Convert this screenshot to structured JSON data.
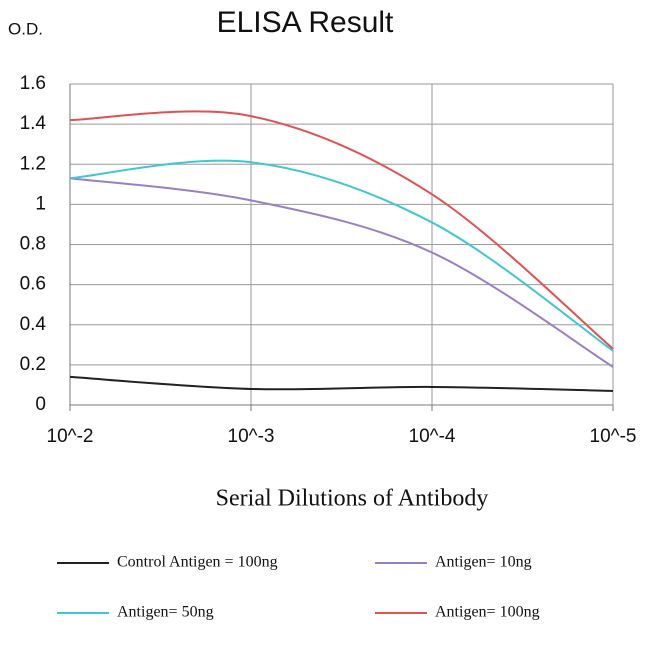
{
  "chart_data": {
    "type": "line",
    "title": "ELISA Result",
    "y_label": "O.D.",
    "x_label": "Serial Dilutions of Antibody",
    "categories": [
      "10^-2",
      "10^-3",
      "10^-4",
      "10^-5"
    ],
    "series": [
      {
        "name": "Control Antigen = 100ng",
        "color": "#222222",
        "values": [
          0.14,
          0.08,
          0.09,
          0.07
        ]
      },
      {
        "name": "Antigen= 10ng",
        "color": "#9b7fc4",
        "values": [
          1.13,
          1.02,
          0.76,
          0.19
        ]
      },
      {
        "name": "Antigen= 50ng",
        "color": "#3fc7d3",
        "values": [
          1.13,
          1.21,
          0.91,
          0.27
        ]
      },
      {
        "name": "Antigen= 100ng",
        "color": "#e05252",
        "values": [
          1.42,
          1.44,
          1.05,
          0.28
        ]
      }
    ],
    "ylim": [
      0,
      1.6
    ],
    "yticks": [
      0,
      0.2,
      0.4,
      0.6,
      0.8,
      1,
      1.2,
      1.4,
      1.6
    ],
    "grid": true,
    "smooth": true
  }
}
